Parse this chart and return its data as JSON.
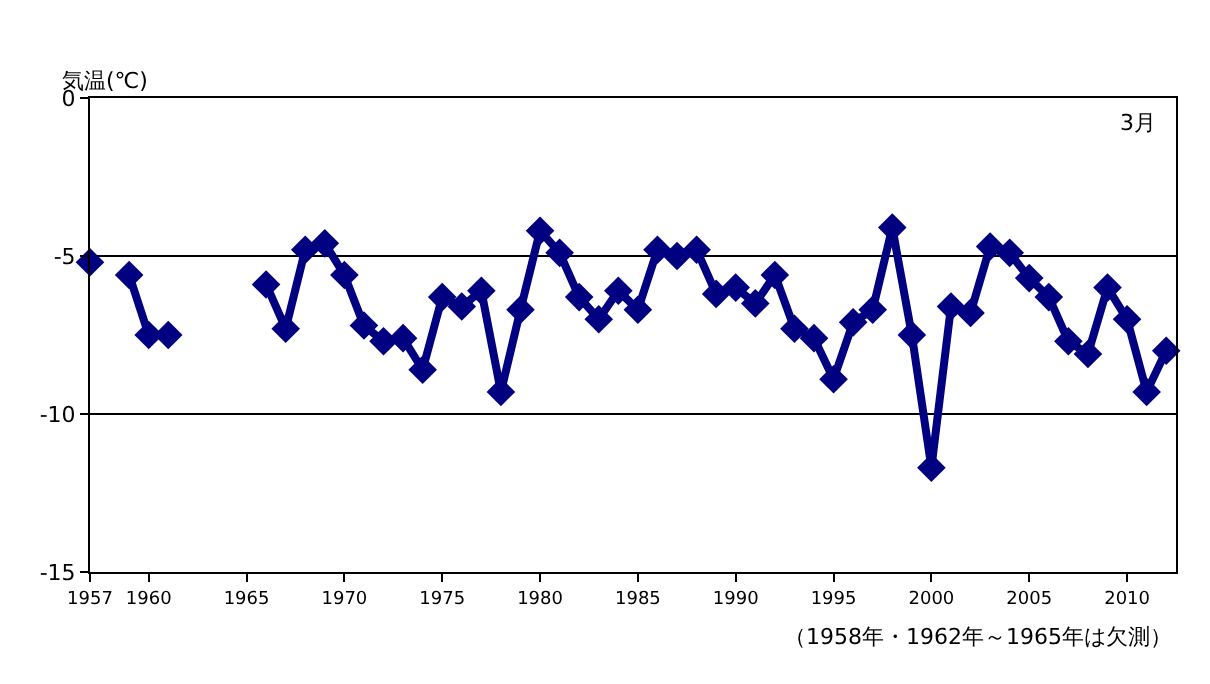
{
  "chart_data": {
    "type": "line",
    "ylabel": "気温(℃)",
    "annotations": [
      "3月",
      "（1958年・1962年～1965年は欠測）"
    ],
    "x": [
      1957,
      1958,
      1959,
      1960,
      1961,
      1962,
      1963,
      1964,
      1965,
      1966,
      1967,
      1968,
      1969,
      1970,
      1971,
      1972,
      1973,
      1974,
      1975,
      1976,
      1977,
      1978,
      1979,
      1980,
      1981,
      1982,
      1983,
      1984,
      1985,
      1986,
      1987,
      1988,
      1989,
      1990,
      1991,
      1992,
      1993,
      1994,
      1995,
      1996,
      1997,
      1998,
      1999,
      2000,
      2001,
      2002,
      2003,
      2004,
      2005,
      2006,
      2007,
      2008,
      2009,
      2010,
      2011,
      2012
    ],
    "series": [
      {
        "color": "#000080",
        "values": [
          -5.2,
          null,
          -5.6,
          -7.5,
          -7.5,
          null,
          null,
          null,
          null,
          -5.9,
          -7.3,
          -4.8,
          -4.6,
          -5.6,
          -7.2,
          -7.7,
          -7.6,
          -8.6,
          -6.3,
          -6.6,
          -6.1,
          -9.3,
          -6.7,
          -4.2,
          -4.9,
          -6.3,
          -7.0,
          -6.1,
          -6.7,
          -4.8,
          -5.0,
          -4.8,
          -6.2,
          -6.0,
          -6.5,
          -5.6,
          -7.3,
          -7.6,
          -8.9,
          -7.1,
          -6.7,
          -4.1,
          -7.5,
          -11.7,
          -6.6,
          -6.8,
          -4.7,
          -4.9,
          -5.7,
          -6.3,
          -7.7,
          -8.1,
          -6.0,
          -7.0,
          -9.3,
          -8.0
        ]
      }
    ],
    "xlim": [
      1957,
      2012.5
    ],
    "xticks": [
      1957,
      1960,
      1965,
      1970,
      1975,
      1980,
      1985,
      1990,
      1995,
      2000,
      2005,
      2010
    ],
    "ylim": [
      -15,
      0
    ],
    "yticks": [
      -15,
      -10,
      -5,
      0
    ],
    "grid": "y",
    "marker": "diamond",
    "line_style": "solid",
    "legend": false
  }
}
